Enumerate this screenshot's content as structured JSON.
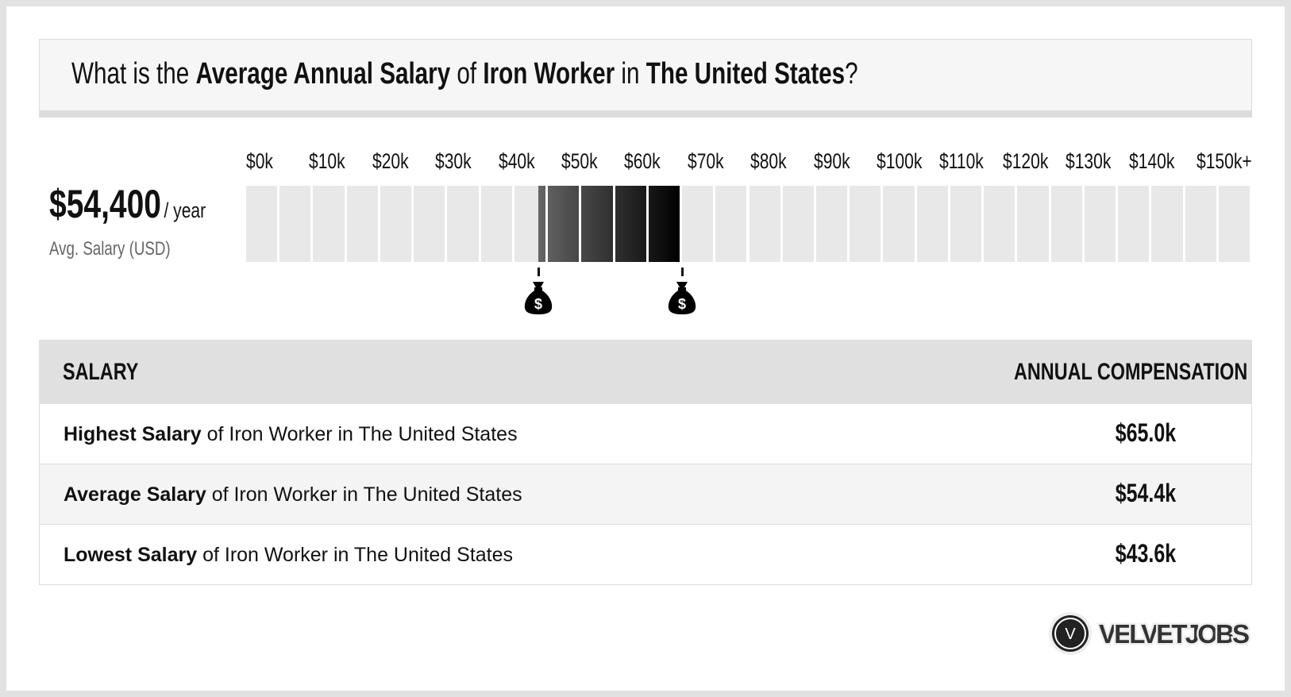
{
  "title": {
    "p1": "What is the ",
    "b1": "Average Annual Salary",
    "p2": " of ",
    "b2": "Iron Worker",
    "p3": " in ",
    "b3": "The United States",
    "p4": "?"
  },
  "summary": {
    "value": "$54,400",
    "unit": "/ year",
    "label": "Avg. Salary (USD)"
  },
  "chart_data": {
    "type": "range-bar",
    "tick_labels": [
      "$0k",
      "$10k",
      "$20k",
      "$30k",
      "$40k",
      "$50k",
      "$60k",
      "$70k",
      "$80k",
      "$90k",
      "$100k",
      "$110k",
      "$120k",
      "$130k",
      "$140k",
      "$150k+"
    ],
    "xlim": [
      0,
      150000
    ],
    "segment_step": 5000,
    "low": 43600,
    "average": 54400,
    "high": 65000,
    "colors": {
      "empty": "#e8e8e8",
      "range_start": "#666666",
      "range_end": "#000000"
    }
  },
  "table": {
    "headers": [
      "SALARY",
      "ANNUAL COMPENSATION"
    ],
    "rows": [
      {
        "bold": "Highest Salary",
        "rest": " of Iron Worker in The United States",
        "value": "$65.0k"
      },
      {
        "bold": "Average Salary",
        "rest": " of Iron Worker in The United States",
        "value": "$54.4k"
      },
      {
        "bold": "Lowest Salary",
        "rest": " of Iron Worker in The United States",
        "value": "$43.6k"
      }
    ]
  },
  "logo": {
    "text": "VELVETJOBS",
    "letter": "V"
  }
}
